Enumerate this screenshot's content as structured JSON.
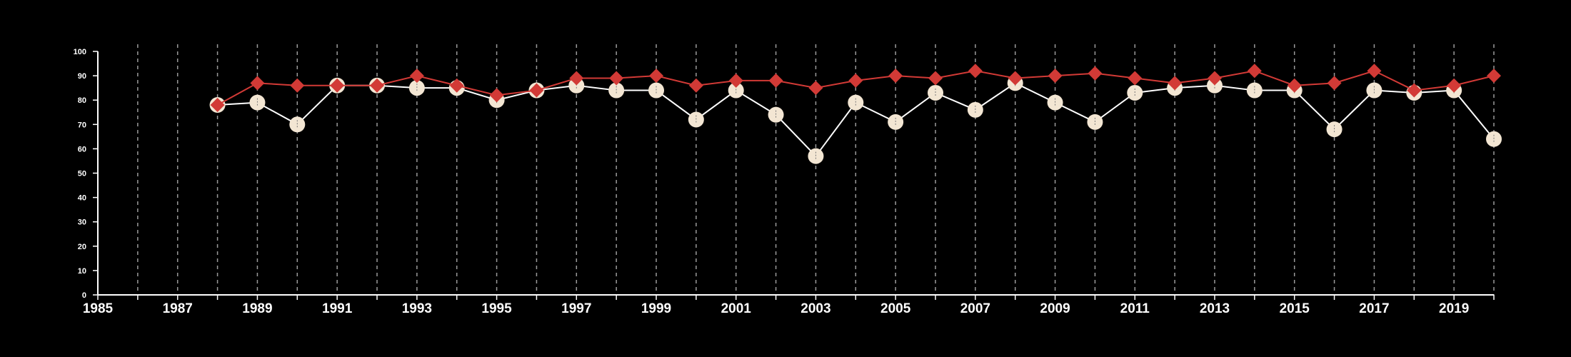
{
  "colors": {
    "background": "#000000",
    "axis": "#ffffff",
    "grid": "#9a9a9a",
    "series_a": "#f3e6d3",
    "series_a_line": "#ffffff",
    "series_b": "#d23a36"
  },
  "chart_data": {
    "type": "line",
    "title": "",
    "xlabel": "",
    "ylabel": "",
    "xlim": [
      1985,
      2020
    ],
    "ylim": [
      0,
      100
    ],
    "x_ticks": [
      1985,
      1987,
      1989,
      1991,
      1993,
      1995,
      1997,
      1999,
      2001,
      2003,
      2005,
      2007,
      2009,
      2011,
      2013,
      2015,
      2017,
      2019
    ],
    "y_ticks": [
      0,
      10,
      20,
      30,
      40,
      50,
      60,
      70,
      80,
      90,
      100
    ],
    "grid": "vertical dashed at every year",
    "legend": "none",
    "x": [
      1988,
      1989,
      1990,
      1991,
      1992,
      1993,
      1994,
      1995,
      1996,
      1997,
      1998,
      1999,
      2000,
      2001,
      2002,
      2003,
      2004,
      2005,
      2006,
      2007,
      2008,
      2009,
      2010,
      2011,
      2012,
      2013,
      2014,
      2015,
      2016,
      2017,
      2018,
      2019,
      2020
    ],
    "series": [
      {
        "marker": "circle",
        "values": [
          78,
          79,
          70,
          86,
          86,
          85,
          85,
          80,
          84,
          86,
          84,
          84,
          72,
          84,
          74,
          57,
          79,
          71,
          83,
          76,
          87,
          79,
          71,
          83,
          85,
          86,
          84,
          84,
          68,
          84,
          83,
          84,
          64
        ]
      },
      {
        "marker": "diamond",
        "values": [
          78,
          87,
          86,
          86,
          86,
          90,
          86,
          82,
          84,
          89,
          89,
          90,
          86,
          88,
          88,
          85,
          88,
          90,
          89,
          92,
          89,
          90,
          91,
          89,
          87,
          89,
          92,
          86,
          87,
          92,
          84,
          86,
          90
        ]
      }
    ]
  }
}
